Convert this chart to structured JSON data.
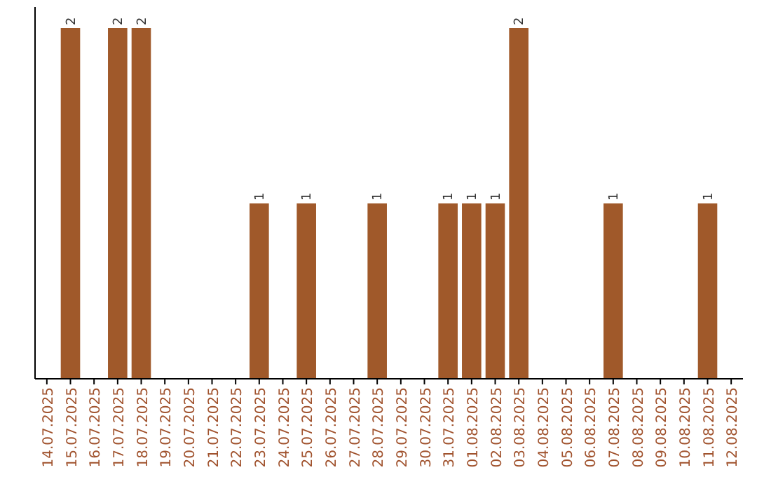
{
  "chart_data": {
    "type": "bar",
    "categories": [
      "14.07.2025",
      "15.07.2025",
      "16.07.2025",
      "17.07.2025",
      "18.07.2025",
      "19.07.2025",
      "20.07.2025",
      "21.07.2025",
      "22.07.2025",
      "23.07.2025",
      "24.07.2025",
      "25.07.2025",
      "26.07.2025",
      "27.07.2025",
      "28.07.2025",
      "29.07.2025",
      "30.07.2025",
      "31.07.2025",
      "01.08.2025",
      "02.08.2025",
      "03.08.2025",
      "04.08.2025",
      "05.08.2025",
      "06.08.2025",
      "07.08.2025",
      "08.08.2025",
      "09.08.2025",
      "10.08.2025",
      "11.08.2025",
      "12.08.2025"
    ],
    "values": [
      0,
      2,
      0,
      2,
      2,
      0,
      0,
      0,
      0,
      1,
      0,
      1,
      0,
      0,
      1,
      0,
      0,
      1,
      1,
      1,
      2,
      0,
      0,
      0,
      1,
      0,
      0,
      0,
      1,
      0
    ],
    "value_labels": [
      null,
      "2",
      null,
      "2",
      "2",
      null,
      null,
      null,
      null,
      "1",
      null,
      "1",
      null,
      null,
      "1",
      null,
      null,
      "1",
      "1",
      "1",
      "2",
      null,
      null,
      null,
      "1",
      null,
      null,
      null,
      "1",
      null
    ],
    "color": "#a0592a"
  }
}
